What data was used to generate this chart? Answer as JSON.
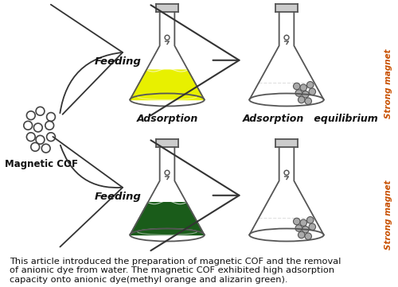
{
  "background_color": "#ffffff",
  "caption": "This article introduced the preparation of magnetic COF and the removal\nof anionic dye from water. The magnetic COF exhibited high adsorption\ncapacity onto anionic dye(methyl orange and alizarin green).",
  "caption_fontsize": 8.5,
  "label_magnetic_cof": "Magnetic COF",
  "label_feeding1": "Feeding",
  "label_feeding2": "Feeding",
  "label_adsorption": "Adsorption",
  "label_adsorption_eq": "Adsorption   equilibrium",
  "label_strong_magnet1": "Strong magnet",
  "label_strong_magnet2": "Strong magnet",
  "flask1_liquid_color": "#e8f000",
  "flask2_liquid_color": "#1a5c1a",
  "flask_outline_color": "#555555",
  "particle_color": "#444444",
  "arrow_color": "#333333",
  "text_color": "#111111",
  "magnet_text_color": "#c85000"
}
